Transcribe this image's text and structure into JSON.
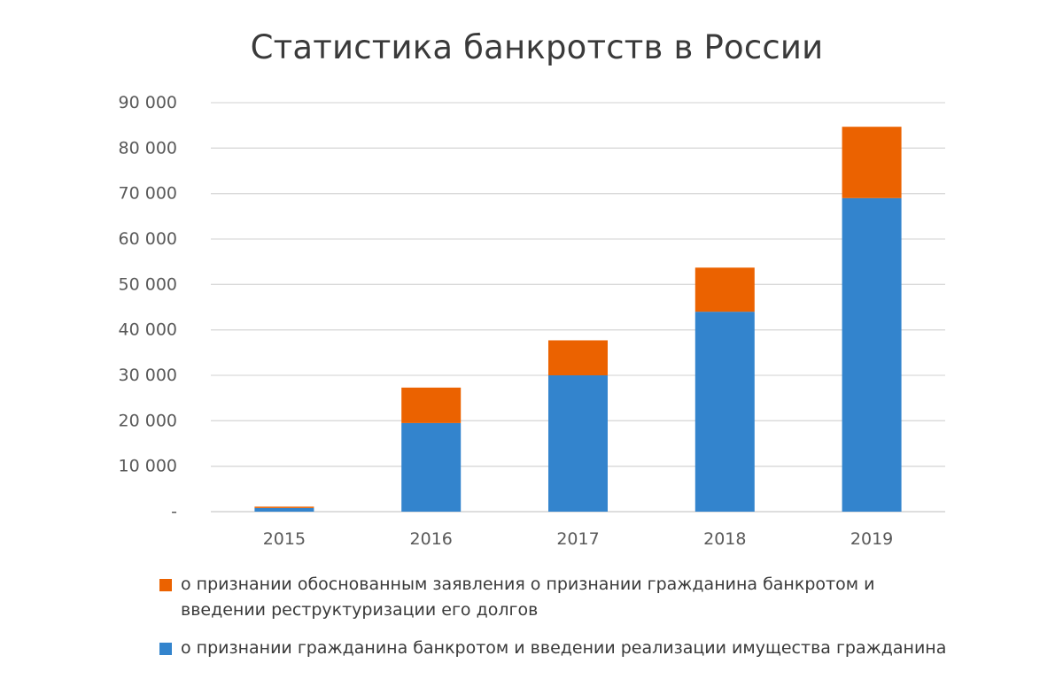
{
  "chart_data": {
    "type": "bar",
    "stacked": true,
    "title": "Статистика банкротств в России",
    "categories": [
      "2015",
      "2016",
      "2017",
      "2018",
      "2019"
    ],
    "series": [
      {
        "name": "о признании гражданина банкротом и введении реализации имущества гражданина",
        "color": "#3384cd",
        "values": [
          800,
          19500,
          30000,
          44000,
          69000
        ]
      },
      {
        "name": "о признании обоснованным заявления о признании гражданина банкротом и введении реструктуризации его долгов",
        "color": "#eb6200",
        "values": [
          300,
          7800,
          7700,
          9700,
          15700
        ]
      }
    ],
    "ylim": [
      0,
      90000
    ],
    "yticks": [
      0,
      10000,
      20000,
      30000,
      40000,
      50000,
      60000,
      70000,
      80000,
      90000
    ],
    "ytick_labels": [
      "-",
      "10 000",
      "20 000",
      "30 000",
      "40 000",
      "50 000",
      "60 000",
      "70 000",
      "80 000",
      "90 000"
    ],
    "xlabel": "",
    "ylabel": "",
    "grid": true,
    "legend_position": "bottom"
  }
}
